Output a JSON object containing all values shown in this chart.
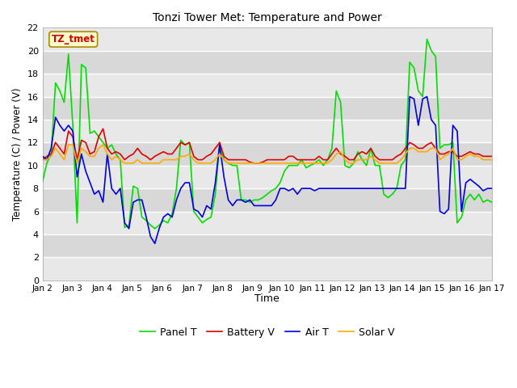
{
  "title": "Tonzi Tower Met: Temperature and Power",
  "xlabel": "Time",
  "ylabel": "Temperature (C) / Power (V)",
  "watermark": "TZ_tmet",
  "ylim": [
    0,
    22
  ],
  "yticks": [
    0,
    2,
    4,
    6,
    8,
    10,
    12,
    14,
    16,
    18,
    20,
    22
  ],
  "xtick_labels": [
    "Jan 2",
    "Jan 3",
    "Jan 4",
    "Jan 5",
    "Jan 6",
    "Jan 7",
    "Jan 8",
    "Jan 9",
    "Jan 10",
    "Jan 11",
    "Jan 12",
    "Jan 13",
    "Jan 14",
    "Jan 15",
    "Jan 16",
    "Jan 17"
  ],
  "legend_labels": [
    "Panel T",
    "Battery V",
    "Air T",
    "Solar V"
  ],
  "line_colors": [
    "#00dd00",
    "#dd0000",
    "#0000dd",
    "#ffaa00"
  ],
  "fig_bg_color": "#ffffff",
  "plot_bg_color": "#e8e8e8",
  "band_color_light": "#e8e8e8",
  "band_color_dark": "#d8d8d8",
  "watermark_bg": "#ffffcc",
  "watermark_border": "#aa8800",
  "watermark_text_color": "#cc0000",
  "grid_color": "#ffffff",
  "panel_T": [
    8.6,
    10.2,
    11.0,
    17.2,
    16.5,
    15.5,
    19.7,
    13.5,
    5.0,
    18.8,
    18.5,
    12.8,
    13.0,
    12.5,
    12.0,
    11.5,
    11.8,
    11.0,
    10.5,
    4.6,
    4.8,
    8.2,
    8.0,
    5.5,
    5.2,
    4.8,
    4.5,
    4.8,
    5.2,
    5.0,
    5.8,
    8.0,
    12.2,
    11.8,
    12.0,
    6.0,
    5.5,
    5.0,
    5.3,
    5.5,
    7.5,
    12.0,
    10.5,
    10.2,
    10.0,
    10.0,
    7.0,
    7.0,
    6.8,
    7.0,
    7.0,
    7.2,
    7.5,
    7.8,
    8.0,
    8.5,
    9.5,
    10.0,
    10.0,
    10.0,
    10.5,
    9.8,
    10.0,
    10.2,
    10.5,
    10.0,
    10.5,
    11.5,
    16.5,
    15.5,
    10.0,
    9.8,
    10.2,
    11.2,
    10.5,
    10.0,
    11.5,
    10.0,
    10.0,
    7.5,
    7.2,
    7.5,
    8.0,
    10.0,
    10.5,
    19.0,
    18.5,
    16.5,
    16.0,
    21.0,
    20.0,
    19.5,
    11.5,
    11.8,
    11.8,
    12.0,
    5.0,
    5.5,
    7.0,
    7.5,
    7.0,
    7.5,
    6.8,
    7.0,
    6.8
  ],
  "battery_V": [
    10.5,
    10.8,
    11.0,
    12.0,
    11.5,
    11.0,
    13.0,
    12.5,
    10.5,
    12.2,
    12.0,
    11.0,
    11.2,
    12.5,
    13.2,
    11.5,
    11.0,
    11.2,
    11.0,
    10.5,
    10.8,
    11.0,
    11.5,
    11.0,
    10.8,
    10.5,
    10.8,
    11.0,
    11.2,
    11.0,
    11.0,
    11.5,
    12.0,
    11.8,
    12.0,
    10.8,
    10.5,
    10.5,
    10.8,
    11.0,
    11.5,
    12.0,
    10.8,
    10.5,
    10.5,
    10.5,
    10.5,
    10.5,
    10.3,
    10.2,
    10.2,
    10.3,
    10.5,
    10.5,
    10.5,
    10.5,
    10.5,
    10.8,
    10.8,
    10.5,
    10.5,
    10.5,
    10.5,
    10.5,
    10.8,
    10.5,
    10.5,
    11.0,
    11.5,
    11.0,
    10.8,
    10.5,
    10.5,
    11.0,
    11.2,
    11.0,
    11.5,
    10.8,
    10.5,
    10.5,
    10.5,
    10.5,
    10.8,
    11.0,
    11.5,
    12.0,
    11.8,
    11.5,
    11.5,
    11.8,
    12.0,
    11.5,
    11.0,
    11.0,
    11.2,
    11.2,
    10.8,
    10.8,
    11.0,
    11.2,
    11.0,
    11.0,
    10.8,
    10.8,
    10.8
  ],
  "air_T": [
    10.8,
    10.5,
    11.5,
    14.2,
    13.5,
    13.0,
    13.5,
    13.0,
    9.0,
    11.0,
    9.5,
    8.5,
    7.5,
    7.8,
    6.8,
    11.0,
    8.0,
    7.5,
    8.0,
    5.0,
    4.5,
    6.8,
    7.0,
    7.0,
    5.5,
    3.8,
    3.2,
    4.5,
    5.5,
    5.8,
    5.5,
    7.0,
    8.0,
    8.5,
    8.5,
    6.2,
    6.0,
    5.5,
    6.5,
    6.2,
    8.5,
    11.8,
    9.0,
    7.0,
    6.5,
    7.0,
    7.0,
    6.8,
    7.0,
    6.5,
    6.5,
    6.5,
    6.5,
    6.5,
    7.0,
    8.0,
    8.0,
    7.8,
    8.0,
    7.5,
    8.0,
    8.0,
    8.0,
    7.8,
    8.0,
    8.0,
    8.0,
    8.0,
    8.0,
    8.0,
    8.0,
    8.0,
    8.0,
    8.0,
    8.0,
    8.0,
    8.0,
    8.0,
    8.0,
    8.0,
    8.0,
    8.0,
    8.0,
    8.0,
    8.0,
    16.0,
    15.8,
    13.5,
    15.8,
    16.0,
    14.0,
    13.5,
    6.0,
    5.8,
    6.2,
    13.5,
    13.0,
    6.0,
    8.5,
    8.8,
    8.5,
    8.2,
    7.8,
    8.0,
    8.0
  ],
  "solar_V": [
    10.5,
    10.5,
    10.8,
    11.5,
    11.0,
    10.5,
    11.8,
    11.8,
    10.2,
    11.5,
    11.2,
    10.8,
    10.8,
    11.5,
    11.8,
    11.0,
    10.5,
    10.8,
    10.5,
    10.2,
    10.2,
    10.2,
    10.5,
    10.2,
    10.2,
    10.2,
    10.2,
    10.2,
    10.5,
    10.5,
    10.5,
    10.5,
    10.8,
    10.8,
    11.0,
    10.5,
    10.2,
    10.2,
    10.2,
    10.2,
    10.5,
    11.0,
    10.5,
    10.2,
    10.2,
    10.2,
    10.2,
    10.2,
    10.2,
    10.2,
    10.2,
    10.2,
    10.2,
    10.2,
    10.2,
    10.2,
    10.2,
    10.2,
    10.2,
    10.2,
    10.2,
    10.2,
    10.2,
    10.2,
    10.2,
    10.2,
    10.2,
    10.5,
    11.0,
    11.2,
    10.5,
    10.2,
    10.2,
    10.5,
    10.5,
    10.5,
    10.8,
    10.5,
    10.2,
    10.2,
    10.2,
    10.2,
    10.2,
    10.5,
    11.0,
    11.5,
    11.5,
    11.2,
    11.2,
    11.2,
    11.5,
    11.5,
    10.5,
    10.8,
    11.0,
    11.5,
    10.5,
    10.5,
    10.8,
    11.0,
    10.8,
    10.8,
    10.5,
    10.5,
    10.5
  ]
}
